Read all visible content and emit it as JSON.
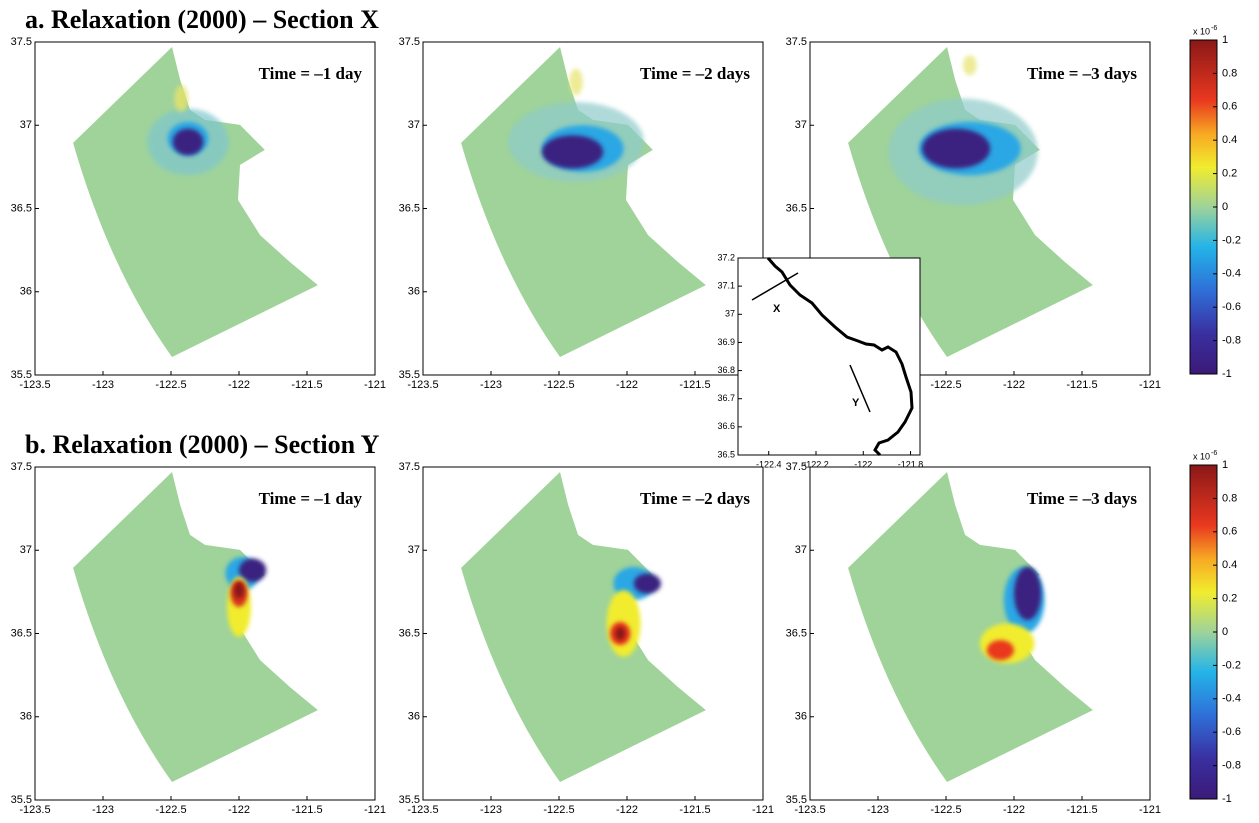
{
  "sections": [
    {
      "title": "a.  Relaxation (2000) – Section X",
      "panels": [
        "Time = –1 day",
        "Time = –2 days",
        "Time = –3 days"
      ]
    },
    {
      "title": "b.  Relaxation (2000) – Section Y",
      "panels": [
        "Time = –1 day",
        "Time = –2 days",
        "Time = –3 days"
      ]
    }
  ],
  "map_axes": {
    "xlim": [
      -123.5,
      -121
    ],
    "ylim": [
      35.5,
      37.5
    ],
    "xticks": [
      -123.5,
      -123,
      -122.5,
      -122,
      -121.5,
      -121
    ],
    "yticks": [
      35.5,
      36,
      36.5,
      37,
      37.5
    ]
  },
  "colorbar": {
    "lim": [
      -1,
      1
    ],
    "ticks": [
      -1,
      -0.8,
      -0.6,
      -0.4,
      -0.2,
      0,
      0.2,
      0.4,
      0.6,
      0.8,
      1
    ],
    "scale_label": "x 10",
    "scale_exponent": -6
  },
  "inset": {
    "xlim": [
      -122.53,
      -121.76
    ],
    "ylim": [
      36.5,
      37.2
    ],
    "xticks": [
      -122.4,
      -122.2,
      -122,
      -121.8
    ],
    "yticks": [
      36.5,
      36.6,
      36.7,
      36.8,
      36.9,
      37,
      37.1,
      37.2
    ],
    "sections": [
      "X",
      "Y"
    ]
  }
}
